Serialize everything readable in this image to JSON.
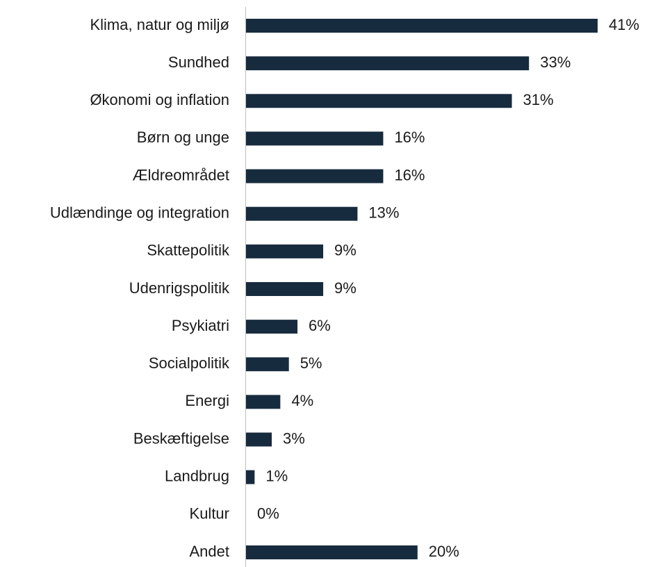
{
  "chart_data": {
    "type": "bar",
    "orientation": "horizontal",
    "categories": [
      "Klima, natur og miljø",
      "Sundhed",
      "Økonomi og inflation",
      "Børn og unge",
      "Ældreområdet",
      "Udlændinge og integration",
      "Skattepolitik",
      "Udenrigspolitik",
      "Psykiatri",
      "Socialpolitik",
      "Energi",
      "Beskæftigelse",
      "Landbrug",
      "Kultur",
      "Andet"
    ],
    "values": [
      41,
      33,
      31,
      16,
      16,
      13,
      9,
      9,
      6,
      5,
      4,
      3,
      1,
      0,
      20
    ],
    "value_labels": [
      "41%",
      "33%",
      "31%",
      "16%",
      "16%",
      "13%",
      "9%",
      "9%",
      "6%",
      "5%",
      "4%",
      "3%",
      "1%",
      "0%",
      "20%"
    ],
    "color": "#172b3f"
  }
}
